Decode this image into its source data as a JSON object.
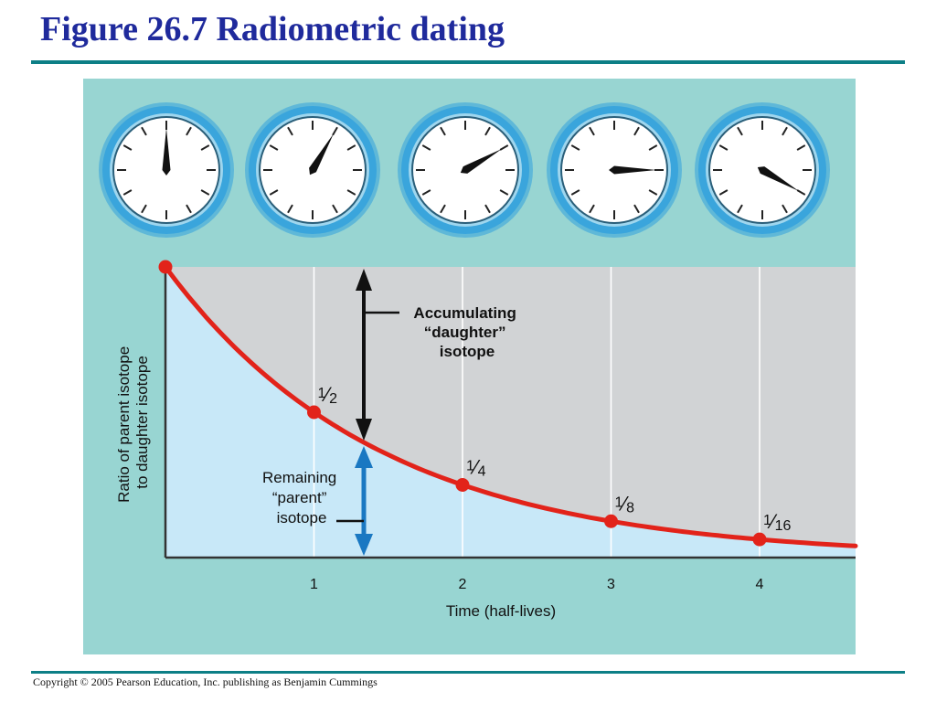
{
  "slide": {
    "title": "Figure 26.7 Radiometric dating",
    "copyright": "Copyright © 2005 Pearson Education, Inc. publishing as Benjamin Cummings"
  },
  "colors": {
    "panel": "#98d5d2",
    "accumulating_region": "#d1d3d5",
    "remaining_region": "#c8e8f8",
    "curve": "#e2231a",
    "clock_ring": "#3aa5dc",
    "blue_arrow": "#1a78c2",
    "black_arrow": "#111111"
  },
  "clocks": [
    {
      "hand_hour": 12
    },
    {
      "hand_hour": 1
    },
    {
      "hand_hour": 2
    },
    {
      "hand_hour": 3
    },
    {
      "hand_hour": 4
    }
  ],
  "annotations": {
    "accumulating": [
      "Accumulating",
      "“daughter”",
      "isotope"
    ],
    "remaining": [
      "Remaining",
      "“parent”",
      "isotope"
    ]
  },
  "chart_data": {
    "type": "line",
    "xlabel": "Time (half-lives)",
    "ylabel": [
      "Ratio of parent isotope",
      "to daughter isotope"
    ],
    "x_ticks": [
      "1",
      "2",
      "3",
      "4"
    ],
    "xlim": [
      0,
      4.65
    ],
    "ylim": [
      0,
      1
    ],
    "series": [
      {
        "values_x": [
          0,
          1,
          2,
          3,
          4
        ],
        "values_y": [
          1,
          0.5,
          0.25,
          0.125,
          0.0625
        ],
        "point_labels": [
          {
            "num": "",
            "den": ""
          },
          {
            "num": "1",
            "den": "2"
          },
          {
            "num": "1",
            "den": "4"
          },
          {
            "num": "1",
            "den": "8"
          },
          {
            "num": "1",
            "den": "16"
          }
        ]
      }
    ],
    "grid": true,
    "legend": "none"
  }
}
